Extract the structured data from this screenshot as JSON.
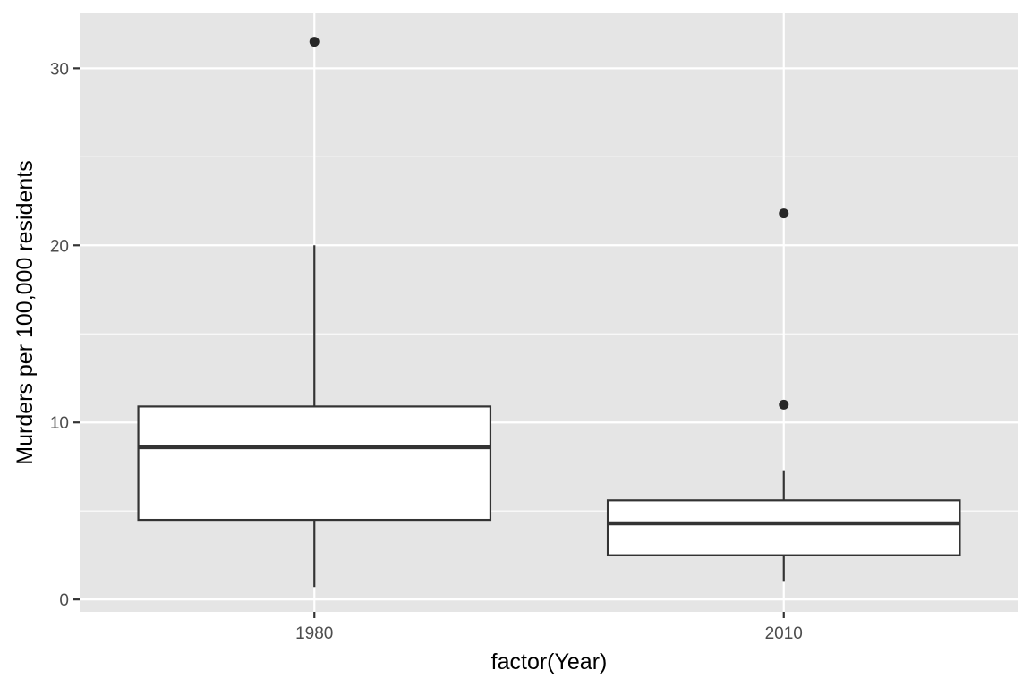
{
  "chart_data": {
    "type": "boxplot",
    "xlabel": "factor(Year)",
    "ylabel": "Murders per 100,000 residents",
    "categories": [
      "1980",
      "2010"
    ],
    "ylim": [
      -0.7,
      33.1
    ],
    "yticks": [
      0,
      10,
      20,
      30
    ],
    "grid": true,
    "boxes": [
      {
        "category": "1980",
        "whisker_low": 0.7,
        "q1": 4.5,
        "median": 8.6,
        "q3": 10.9,
        "whisker_high": 20.0,
        "outliers": [
          31.5
        ]
      },
      {
        "category": "2010",
        "whisker_low": 1.0,
        "q1": 2.5,
        "median": 4.3,
        "q3": 5.6,
        "whisker_high": 7.3,
        "outliers": [
          21.8,
          11.0
        ]
      }
    ]
  },
  "colors": {
    "panel_background": "#e5e5e5",
    "grid_lines": "#ffffff",
    "box_fill": "#ffffff",
    "box_stroke": "#333333",
    "outlier": "#262626"
  }
}
